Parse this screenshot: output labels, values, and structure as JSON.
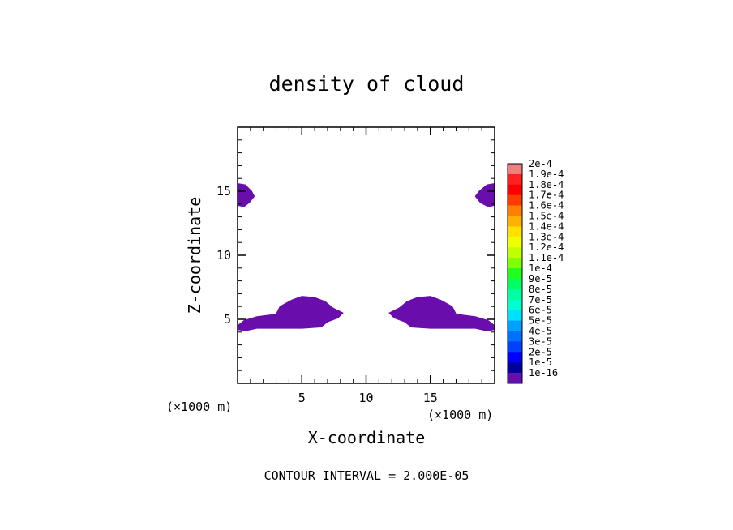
{
  "chart_data": {
    "type": "contour",
    "title": "density of cloud",
    "xlabel": "X-coordinate",
    "ylabel": "Z-coordinate",
    "x_unit_label": "(×1000 m)",
    "x_unit_label_secondary": "(×1000 m)",
    "xlim": [
      0,
      20
    ],
    "ylim": [
      0,
      20
    ],
    "x_ticks": [
      5,
      10,
      15
    ],
    "y_ticks": [
      5,
      10,
      15
    ],
    "footer": "CONTOUR INTERVAL = 2.000E-05",
    "fill_color": "#6a0dad",
    "legend": {
      "position": "right",
      "labels": [
        "2e-4",
        "1.9e-4",
        "1.8e-4",
        "1.7e-4",
        "1.6e-4",
        "1.5e-4",
        "1.4e-4",
        "1.3e-4",
        "1.2e-4",
        "1.1e-4",
        "1e-4",
        "9e-5",
        "8e-5",
        "7e-5",
        "6e-5",
        "5e-5",
        "4e-5",
        "3e-5",
        "2e-5",
        "1e-5",
        "1e-16"
      ],
      "colors": [
        "#f08080",
        "#ff2020",
        "#ff0000",
        "#ff3c00",
        "#ff8000",
        "#ffb000",
        "#ffe000",
        "#f0ff00",
        "#c0ff00",
        "#80ff00",
        "#20ff20",
        "#00ff60",
        "#00ffa0",
        "#00ffd0",
        "#00e0ff",
        "#00a0ff",
        "#0070ff",
        "#0040ff",
        "#0000ff",
        "#0000a0",
        "#6a0dad"
      ]
    },
    "regions": [
      {
        "name": "upper-left-cloud",
        "polygon": [
          [
            0,
            15.6
          ],
          [
            0.6,
            15.5
          ],
          [
            1.1,
            15.0
          ],
          [
            1.3,
            14.6
          ],
          [
            0.9,
            14.1
          ],
          [
            0.5,
            13.8
          ],
          [
            0,
            13.9
          ]
        ]
      },
      {
        "name": "upper-right-cloud",
        "polygon": [
          [
            20,
            15.6
          ],
          [
            19.4,
            15.5
          ],
          [
            18.8,
            15.0
          ],
          [
            18.5,
            14.6
          ],
          [
            18.9,
            14.1
          ],
          [
            19.5,
            13.8
          ],
          [
            20,
            13.9
          ]
        ]
      },
      {
        "name": "lower-left-cloud",
        "polygon": [
          [
            0,
            4.2
          ],
          [
            0,
            4.5
          ],
          [
            0.5,
            4.9
          ],
          [
            1.5,
            5.2
          ],
          [
            3.0,
            5.4
          ],
          [
            3.3,
            6.0
          ],
          [
            4.2,
            6.5
          ],
          [
            5.0,
            6.8
          ],
          [
            6.0,
            6.7
          ],
          [
            6.8,
            6.4
          ],
          [
            7.4,
            5.9
          ],
          [
            8.2,
            5.5
          ],
          [
            7.8,
            5.1
          ],
          [
            7.0,
            4.8
          ],
          [
            6.5,
            4.4
          ],
          [
            5.0,
            4.3
          ],
          [
            3.0,
            4.3
          ],
          [
            1.5,
            4.3
          ],
          [
            0.6,
            4.1
          ]
        ]
      },
      {
        "name": "lower-right-cloud",
        "polygon": [
          [
            20,
            4.2
          ],
          [
            20,
            4.5
          ],
          [
            19.5,
            4.9
          ],
          [
            18.5,
            5.2
          ],
          [
            17.0,
            5.4
          ],
          [
            16.7,
            6.0
          ],
          [
            15.8,
            6.5
          ],
          [
            15.0,
            6.8
          ],
          [
            14.0,
            6.7
          ],
          [
            13.2,
            6.4
          ],
          [
            12.6,
            5.9
          ],
          [
            11.8,
            5.5
          ],
          [
            12.2,
            5.1
          ],
          [
            13.0,
            4.8
          ],
          [
            13.5,
            4.4
          ],
          [
            15.0,
            4.3
          ],
          [
            17.0,
            4.3
          ],
          [
            18.5,
            4.3
          ],
          [
            19.4,
            4.1
          ]
        ]
      }
    ]
  }
}
